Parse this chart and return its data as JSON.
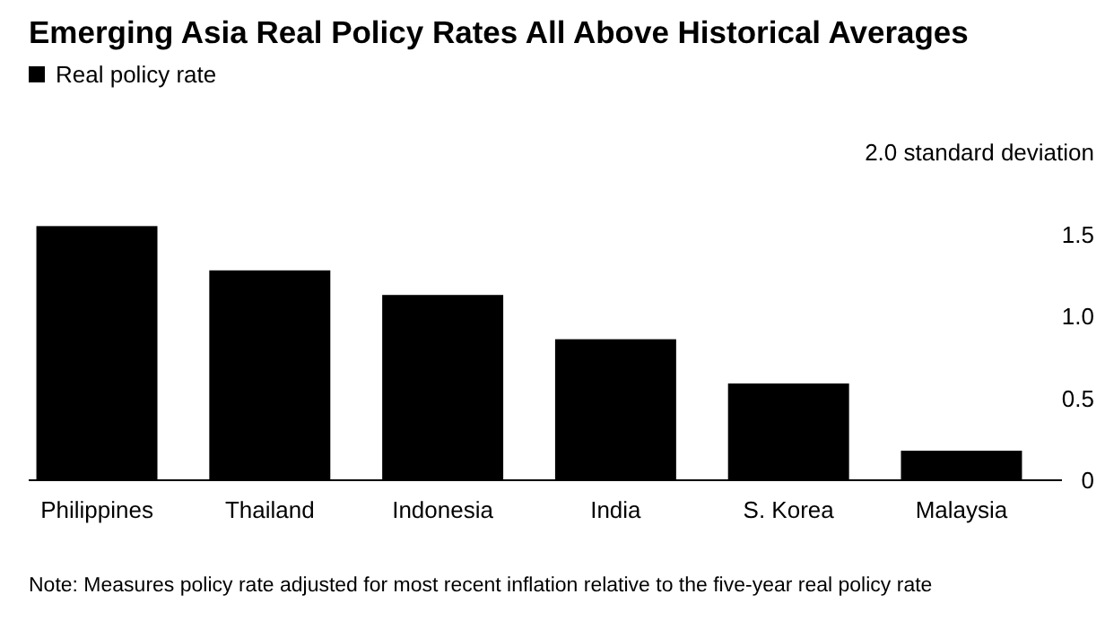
{
  "chart_data": {
    "type": "bar",
    "title": "Emerging Asia Real Policy Rates All Above Historical Averages",
    "categories": [
      "Philippines",
      "Thailand",
      "Indonesia",
      "India",
      "S. Korea",
      "Malaysia"
    ],
    "series": [
      {
        "name": "Real policy rate",
        "color": "#000000",
        "values": [
          1.55,
          1.28,
          1.13,
          0.86,
          0.59,
          0.18
        ]
      }
    ],
    "ylim": [
      0,
      2
    ],
    "yticks": [
      0,
      0.5,
      {
        "value": 1,
        "label": "1.0"
      },
      1.5,
      {
        "value": 2,
        "label": "2.0 standard deviation"
      }
    ],
    "grid": false,
    "legend": "top left",
    "annotations": [
      "Note: Measures policy rate adjusted for most recent inflation relative to the five-year real policy rate"
    ]
  }
}
